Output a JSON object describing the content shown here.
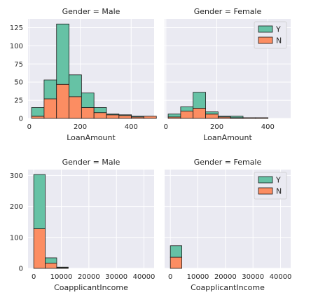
{
  "chart_data": [
    {
      "type": "bar",
      "title": "Gender = Male",
      "xlabel": "LoanAmount",
      "xlim": [
        -5,
        490
      ],
      "ylim": [
        0,
        137
      ],
      "xticks": [
        0,
        200,
        400
      ],
      "yticks": [
        0,
        25,
        50,
        75,
        100,
        125
      ],
      "bin_edges": [
        9,
        58,
        107,
        156,
        205,
        254,
        303,
        352,
        401,
        450,
        499
      ],
      "series": [
        {
          "name": "Y",
          "color": "#66c2a5",
          "values": [
            12,
            26,
            83,
            30,
            20,
            7,
            1,
            1,
            1,
            0
          ]
        },
        {
          "name": "N",
          "color": "#fc8d62",
          "values": [
            3,
            27,
            47,
            30,
            15,
            8,
            5,
            4,
            2,
            3
          ]
        }
      ],
      "stacked": true,
      "show_legend": false,
      "grid": true
    },
    {
      "type": "bar",
      "title": "Gender = Female",
      "xlabel": "LoanAmount",
      "xlim": [
        -5,
        490
      ],
      "ylim": [
        0,
        137
      ],
      "xticks": [
        0,
        200,
        400
      ],
      "yticks": [
        0,
        25,
        50,
        75,
        100,
        125
      ],
      "bin_edges": [
        9,
        58,
        107,
        156,
        205,
        254,
        303,
        352,
        401,
        450,
        499
      ],
      "series": [
        {
          "name": "Y",
          "color": "#66c2a5",
          "values": [
            4,
            6,
            22,
            3,
            1,
            2,
            0,
            0,
            0,
            0
          ]
        },
        {
          "name": "N",
          "color": "#fc8d62",
          "values": [
            2,
            10,
            14,
            6,
            2,
            1,
            1,
            1,
            0,
            0
          ]
        }
      ],
      "stacked": true,
      "show_legend": true,
      "legend_position": "top-right",
      "grid": true
    },
    {
      "type": "bar",
      "title": "Gender = Male",
      "xlabel": "CoapplicantIncome",
      "xlim": [
        -2080,
        43680
      ],
      "ylim": [
        0,
        319
      ],
      "xticks": [
        0,
        10000,
        20000,
        30000,
        40000
      ],
      "yticks": [
        0,
        100,
        200,
        300
      ],
      "bin_edges": [
        0,
        4167,
        8334,
        12501,
        16668,
        20835,
        24668,
        29169,
        33336,
        37503,
        41670
      ],
      "series": [
        {
          "name": "Y",
          "color": "#66c2a5",
          "values": [
            175,
            17,
            2,
            0,
            0,
            0,
            0,
            0,
            0,
            0
          ]
        },
        {
          "name": "N",
          "color": "#fc8d62",
          "values": [
            128,
            17,
            2,
            0,
            0,
            0,
            0,
            0,
            0,
            0
          ]
        }
      ],
      "stacked": true,
      "show_legend": false,
      "grid": true
    },
    {
      "type": "bar",
      "title": "Gender = Female",
      "xlabel": "CoapplicantIncome",
      "xlim": [
        -2080,
        43680
      ],
      "ylim": [
        0,
        319
      ],
      "xticks": [
        0,
        10000,
        20000,
        30000,
        40000
      ],
      "yticks": [
        0,
        100,
        200,
        300
      ],
      "bin_edges": [
        0,
        4167,
        8334,
        12501,
        16668,
        20835,
        24668,
        29169,
        33336,
        37503,
        41670
      ],
      "series": [
        {
          "name": "Y",
          "color": "#66c2a5",
          "values": [
            37,
            0,
            0,
            0,
            0,
            0,
            0,
            0,
            0,
            0
          ]
        },
        {
          "name": "N",
          "color": "#fc8d62",
          "values": [
            36,
            0,
            0,
            0,
            0,
            0,
            0,
            0,
            0,
            0
          ]
        }
      ],
      "stacked": true,
      "show_legend": true,
      "legend_position": "top-right",
      "grid": true
    }
  ]
}
